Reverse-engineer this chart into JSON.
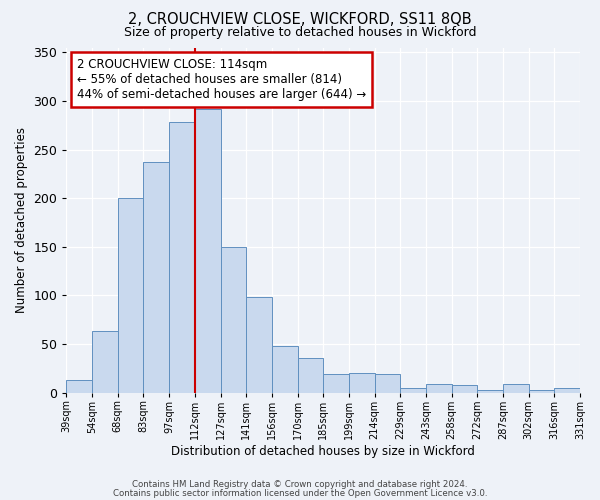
{
  "title": "2, CROUCHVIEW CLOSE, WICKFORD, SS11 8QB",
  "subtitle": "Size of property relative to detached houses in Wickford",
  "xlabel": "Distribution of detached houses by size in Wickford",
  "ylabel": "Number of detached properties",
  "bar_labels": [
    "39sqm",
    "54sqm",
    "68sqm",
    "83sqm",
    "97sqm",
    "112sqm",
    "127sqm",
    "141sqm",
    "156sqm",
    "170sqm",
    "185sqm",
    "199sqm",
    "214sqm",
    "229sqm",
    "243sqm",
    "258sqm",
    "272sqm",
    "287sqm",
    "302sqm",
    "316sqm",
    "331sqm"
  ],
  "bar_heights": [
    13,
    63,
    200,
    237,
    278,
    292,
    150,
    98,
    48,
    35,
    19,
    20,
    19,
    5,
    9,
    8,
    3,
    9,
    3,
    5
  ],
  "bar_color": "#c9d9ee",
  "bar_edge_color": "#6090c0",
  "vline_x_index": 5,
  "vline_color": "#cc0000",
  "ylim": [
    0,
    355
  ],
  "yticks": [
    0,
    50,
    100,
    150,
    200,
    250,
    300,
    350
  ],
  "annotation_title": "2 CROUCHVIEW CLOSE: 114sqm",
  "annotation_line1": "← 55% of detached houses are smaller (814)",
  "annotation_line2": "44% of semi-detached houses are larger (644) →",
  "annotation_box_color": "#ffffff",
  "annotation_border_color": "#cc0000",
  "footer_line1": "Contains HM Land Registry data © Crown copyright and database right 2024.",
  "footer_line2": "Contains public sector information licensed under the Open Government Licence v3.0.",
  "background_color": "#eef2f8"
}
